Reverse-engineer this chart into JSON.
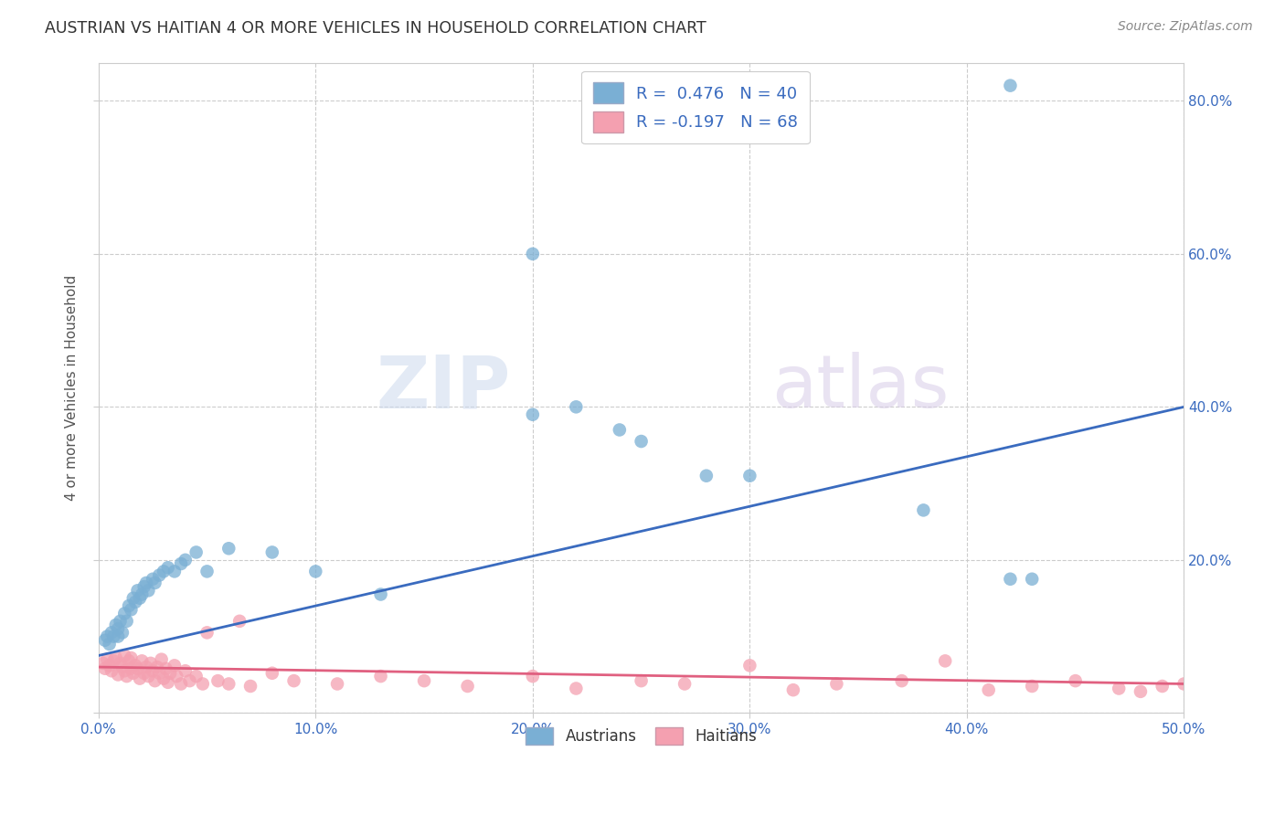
{
  "title": "AUSTRIAN VS HAITIAN 4 OR MORE VEHICLES IN HOUSEHOLD CORRELATION CHART",
  "source": "Source: ZipAtlas.com",
  "ylabel": "4 or more Vehicles in Household",
  "xlim": [
    0.0,
    0.5
  ],
  "ylim": [
    0.0,
    0.85
  ],
  "austrian_color": "#7aafd4",
  "haitian_color": "#f4a0b0",
  "austrian_line_color": "#3a6bbf",
  "haitian_line_color": "#e06080",
  "background_color": "#ffffff",
  "grid_color": "#cccccc",
  "watermark_zip": "ZIP",
  "watermark_atlas": "atlas",
  "austrian_x": [
    0.003,
    0.004,
    0.005,
    0.006,
    0.007,
    0.008,
    0.009,
    0.009,
    0.01,
    0.011,
    0.012,
    0.013,
    0.014,
    0.015,
    0.016,
    0.017,
    0.018,
    0.019,
    0.02,
    0.021,
    0.022,
    0.023,
    0.025,
    0.026,
    0.028,
    0.03,
    0.032,
    0.035,
    0.038,
    0.04,
    0.045,
    0.05,
    0.06,
    0.08,
    0.1,
    0.13,
    0.2,
    0.24,
    0.28,
    0.42
  ],
  "austrian_y": [
    0.095,
    0.1,
    0.09,
    0.105,
    0.1,
    0.115,
    0.1,
    0.11,
    0.12,
    0.105,
    0.13,
    0.12,
    0.14,
    0.135,
    0.15,
    0.145,
    0.16,
    0.15,
    0.155,
    0.165,
    0.17,
    0.16,
    0.175,
    0.17,
    0.18,
    0.185,
    0.19,
    0.185,
    0.195,
    0.2,
    0.21,
    0.185,
    0.215,
    0.21,
    0.185,
    0.155,
    0.39,
    0.37,
    0.31,
    0.175
  ],
  "haitian_x": [
    0.002,
    0.003,
    0.004,
    0.005,
    0.006,
    0.007,
    0.008,
    0.009,
    0.01,
    0.011,
    0.012,
    0.012,
    0.013,
    0.014,
    0.015,
    0.015,
    0.016,
    0.017,
    0.018,
    0.019,
    0.02,
    0.021,
    0.022,
    0.023,
    0.024,
    0.025,
    0.026,
    0.027,
    0.028,
    0.029,
    0.03,
    0.031,
    0.032,
    0.033,
    0.035,
    0.036,
    0.038,
    0.04,
    0.042,
    0.045,
    0.048,
    0.05,
    0.055,
    0.06,
    0.065,
    0.07,
    0.08,
    0.09,
    0.11,
    0.13,
    0.15,
    0.17,
    0.2,
    0.22,
    0.25,
    0.27,
    0.3,
    0.32,
    0.34,
    0.37,
    0.39,
    0.41,
    0.43,
    0.45,
    0.47,
    0.48,
    0.49,
    0.5
  ],
  "haitian_y": [
    0.065,
    0.058,
    0.07,
    0.062,
    0.055,
    0.068,
    0.072,
    0.05,
    0.065,
    0.06,
    0.055,
    0.075,
    0.048,
    0.068,
    0.058,
    0.072,
    0.052,
    0.062,
    0.058,
    0.045,
    0.068,
    0.052,
    0.06,
    0.048,
    0.065,
    0.055,
    0.042,
    0.06,
    0.052,
    0.07,
    0.045,
    0.058,
    0.04,
    0.052,
    0.062,
    0.048,
    0.038,
    0.055,
    0.042,
    0.048,
    0.038,
    0.105,
    0.042,
    0.038,
    0.12,
    0.035,
    0.052,
    0.042,
    0.038,
    0.048,
    0.042,
    0.035,
    0.048,
    0.032,
    0.042,
    0.038,
    0.062,
    0.03,
    0.038,
    0.042,
    0.068,
    0.03,
    0.035,
    0.042,
    0.032,
    0.028,
    0.035,
    0.038
  ],
  "austrian_line_x": [
    0.0,
    0.5
  ],
  "austrian_line_y": [
    0.075,
    0.4
  ],
  "haitian_line_x": [
    0.0,
    0.5
  ],
  "haitian_line_y": [
    0.06,
    0.038
  ]
}
